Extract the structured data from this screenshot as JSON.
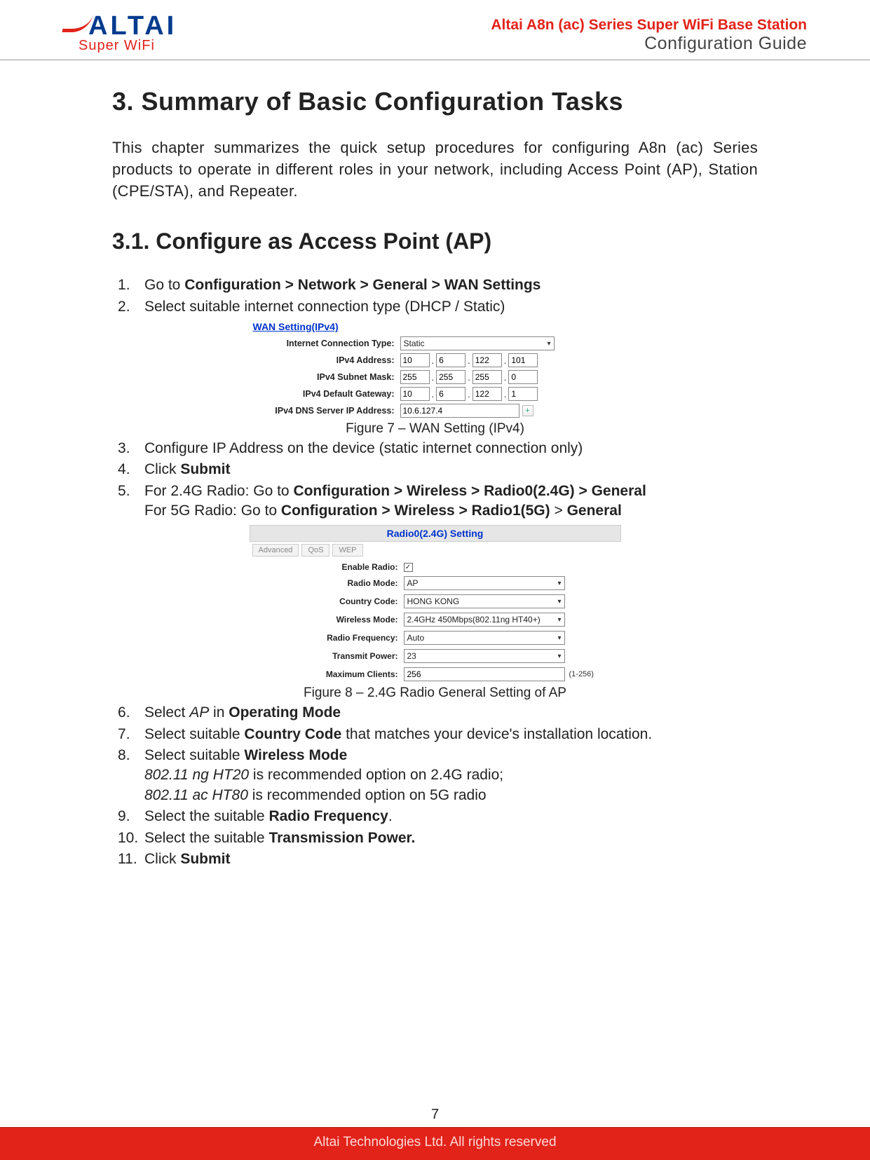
{
  "header": {
    "logo_text": "ALTAI",
    "logo_sub": "Super WiFi",
    "right_line1": "Altai A8n (ac) Series Super WiFi Base Station",
    "right_line2": "Configuration Guide"
  },
  "colors": {
    "brand_blue": "#003b8e",
    "brand_red": "#e2231a",
    "link_blue": "#0033cc"
  },
  "h1": "3. Summary of Basic Configuration Tasks",
  "intro": "This chapter summarizes the quick setup procedures for configuring A8n (ac) Series products to operate in different roles in your network, including Access Point (AP), Station (CPE/STA), and Repeater.",
  "h2": "3.1. Configure as Access Point (AP)",
  "steps": {
    "s1_pre": "Go to ",
    "s1_path": "Configuration > Network > General > WAN Settings",
    "s2": "Select suitable internet connection type (DHCP / Static)",
    "s3": "Configure IP Address on the device (static internet connection only)",
    "s4_pre": "Click ",
    "s4_b": "Submit",
    "s5_l1_pre": "For 2.4G Radio: Go to ",
    "s5_l1_b": "Configuration > Wireless > Radio0(2.4G) > General",
    "s5_l2_pre": "For 5G Radio: Go to ",
    "s5_l2_b1": "Configuration > Wireless > Radio1(5G)",
    "s5_l2_mid": " > ",
    "s5_l2_b2": "General",
    "s6_pre": "Select ",
    "s6_i": "AP",
    "s6_mid": " in ",
    "s6_b": "Operating Mode",
    "s7_pre": "Select suitable ",
    "s7_b": "Country Code",
    "s7_post": " that matches your device's installation location.",
    "s8_pre": "Select suitable ",
    "s8_b": "Wireless Mode",
    "s8_l2_i": "802.11 ng HT20",
    "s8_l2_post": " is recommended option on 2.4G radio;",
    "s8_l3_i": "802.11 ac HT80",
    "s8_l3_post": " is recommended option on 5G radio",
    "s9_pre": "Select the suitable ",
    "s9_b": "Radio Frequency",
    "s9_post": ".",
    "s10_pre": "Select the suitable ",
    "s10_b": "Transmission Power.",
    "s11_pre": "Click ",
    "s11_b": "Submit"
  },
  "wan_figure": {
    "title": "WAN Setting(IPv4)",
    "conn_type_label": "Internet Connection Type:",
    "conn_type_value": "Static",
    "addr_label": "IPv4 Address:",
    "addr_octets": [
      "10",
      "6",
      "122",
      "101"
    ],
    "mask_label": "IPv4 Subnet Mask:",
    "mask_octets": [
      "255",
      "255",
      "255",
      "0"
    ],
    "gw_label": "IPv4 Default Gateway:",
    "gw_octets": [
      "10",
      "6",
      "122",
      "1"
    ],
    "dns_label": "IPv4 DNS Server IP Address:",
    "dns_value": "10.6.127.4",
    "caption": "Figure 7 – WAN Setting (IPv4)"
  },
  "radio_figure": {
    "header": "Radio0(2.4G) Setting",
    "tabs": [
      "Advanced",
      "QoS",
      "WEP"
    ],
    "rows": {
      "enable_label": "Enable Radio:",
      "enable_checked": "✓",
      "mode_label": "Radio Mode:",
      "mode_value": "AP",
      "country_label": "Country Code:",
      "country_value": "HONG KONG",
      "wireless_label": "Wireless Mode:",
      "wireless_value": "2.4GHz 450Mbps(802.11ng HT40+)",
      "freq_label": "Radio Frequency:",
      "freq_value": "Auto",
      "power_label": "Transmit Power:",
      "power_value": "23",
      "max_label": "Maximum Clients:",
      "max_value": "256",
      "max_range": "(1-256)"
    },
    "caption": "Figure 8 – 2.4G Radio General Setting of AP"
  },
  "footer": {
    "page": "7",
    "copyright": "Altai Technologies Ltd. All rights reserved"
  }
}
